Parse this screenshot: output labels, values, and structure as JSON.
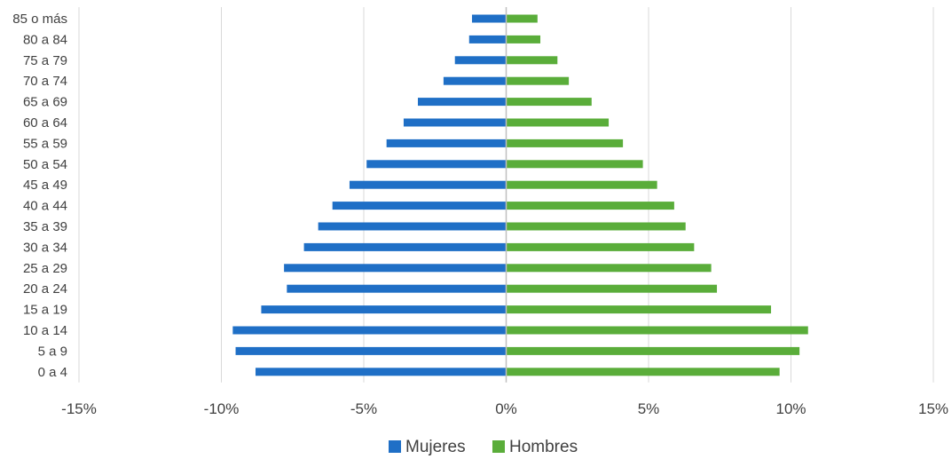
{
  "chart_data": {
    "type": "bar",
    "orientation": "horizontal",
    "categories": [
      "85 o más",
      "80 a 84",
      "75 a 79",
      "70 a 74",
      "65 a 69",
      "60 a 64",
      "55 a 59",
      "50 a 54",
      "45 a 49",
      "40 a 44",
      "35 a 39",
      "30 a 34",
      "25 a 29",
      "20 a 24",
      "15 a 19",
      "10 a 14",
      "5 a 9",
      "0 a 4"
    ],
    "series": [
      {
        "name": "Mujeres",
        "color": "#1f6fc6",
        "values": [
          -1.2,
          -1.3,
          -1.8,
          -2.2,
          -3.1,
          -3.6,
          -4.2,
          -4.9,
          -5.5,
          -6.1,
          -6.6,
          -7.1,
          -7.8,
          -7.7,
          -8.6,
          -9.6,
          -9.5,
          -8.8
        ]
      },
      {
        "name": "Hombres",
        "color": "#5aad3a",
        "values": [
          1.1,
          1.2,
          1.8,
          2.2,
          3.0,
          3.6,
          4.1,
          4.8,
          5.3,
          5.9,
          6.3,
          6.6,
          7.2,
          7.4,
          9.3,
          10.6,
          10.3,
          9.6
        ]
      }
    ],
    "xlim": [
      -15,
      15
    ],
    "xticks": [
      -15,
      -10,
      -5,
      0,
      5,
      10,
      15
    ],
    "xtick_labels": [
      "-15%",
      "-10%",
      "-5%",
      "0%",
      "5%",
      "10%",
      "15%"
    ],
    "grid": true,
    "legend_position": "bottom",
    "colors": {
      "gridline": "#d9d9d9",
      "axis": "#bfbfbf",
      "text": "#404040"
    }
  }
}
